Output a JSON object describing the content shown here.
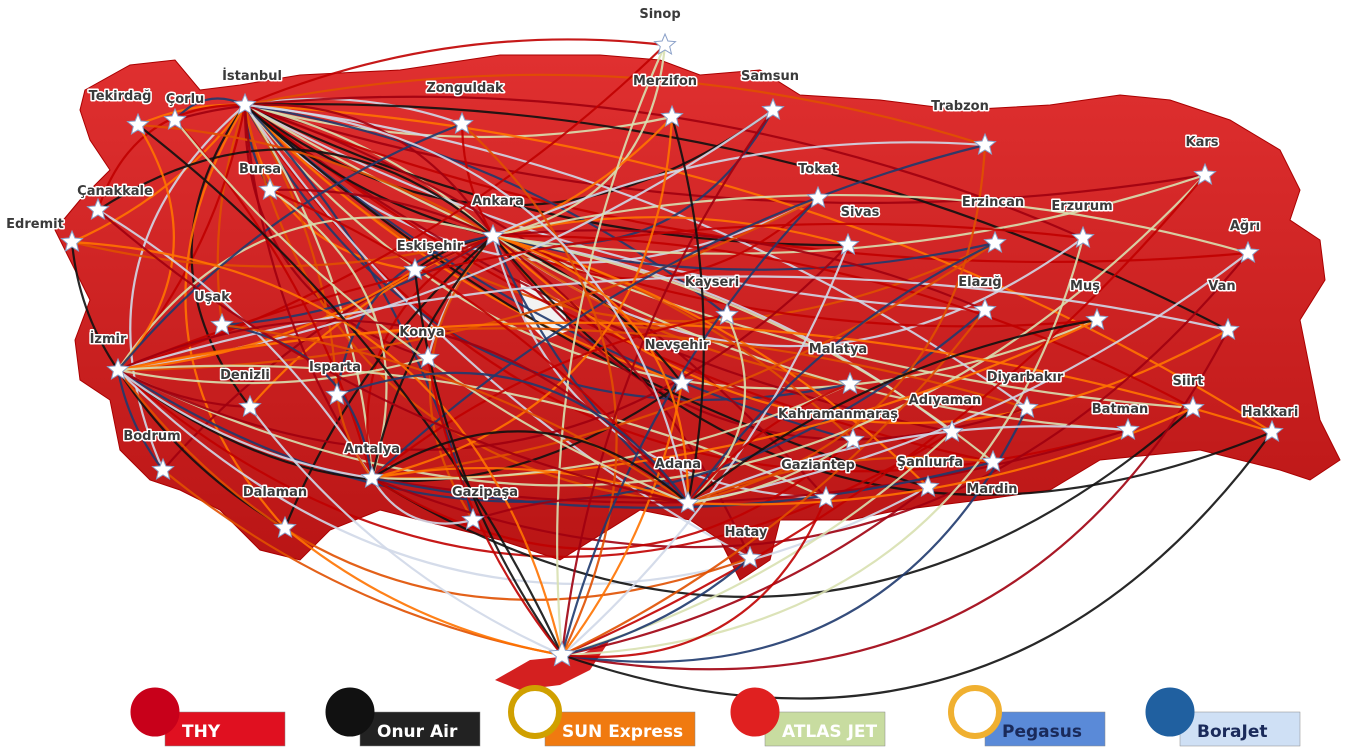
{
  "cities": [
    {
      "name": "Sinop"
    },
    {
      "name": "İstanbul"
    },
    {
      "name": "Tekirdağ"
    },
    {
      "name": "Çorlu"
    },
    {
      "name": "Zonguldak"
    },
    {
      "name": "Merzifon"
    },
    {
      "name": "Samsun"
    },
    {
      "name": "Trabzon"
    },
    {
      "name": "Kars"
    },
    {
      "name": "Çanakkale"
    },
    {
      "name": "Edremit"
    },
    {
      "name": "Bursa"
    },
    {
      "name": "Tokat"
    },
    {
      "name": "Ankara"
    },
    {
      "name": "Sivas"
    },
    {
      "name": "Erzincan"
    },
    {
      "name": "Erzurum"
    },
    {
      "name": "Ağrı"
    },
    {
      "name": "Eskişehir"
    },
    {
      "name": "Kayseri"
    },
    {
      "name": "Elazığ"
    },
    {
      "name": "Muş"
    },
    {
      "name": "Van"
    },
    {
      "name": "Uşak"
    },
    {
      "name": "Konya"
    },
    {
      "name": "İzmir"
    },
    {
      "name": "Nevşehir"
    },
    {
      "name": "Malatya"
    },
    {
      "name": "Diyarbakır"
    },
    {
      "name": "Siirt"
    },
    {
      "name": "Denizli"
    },
    {
      "name": "Isparta"
    },
    {
      "name": "Adıyaman"
    },
    {
      "name": "Batman"
    },
    {
      "name": "Hakkari"
    },
    {
      "name": "Kahramanmaraş"
    },
    {
      "name": "Bodrum"
    },
    {
      "name": "Antalya"
    },
    {
      "name": "Şanlıurfa"
    },
    {
      "name": "Adana"
    },
    {
      "name": "Gaziantep"
    },
    {
      "name": "Mardin"
    },
    {
      "name": "Dalaman"
    },
    {
      "name": "Gazipaşa"
    },
    {
      "name": "Hatay"
    }
  ],
  "airlines": [
    {
      "name": "THY"
    },
    {
      "name": "Onur Air"
    },
    {
      "name": "SUN Express"
    },
    {
      "name": "ATLAS JET"
    },
    {
      "name": "Pegasus"
    },
    {
      "name": "BoraJet"
    }
  ]
}
